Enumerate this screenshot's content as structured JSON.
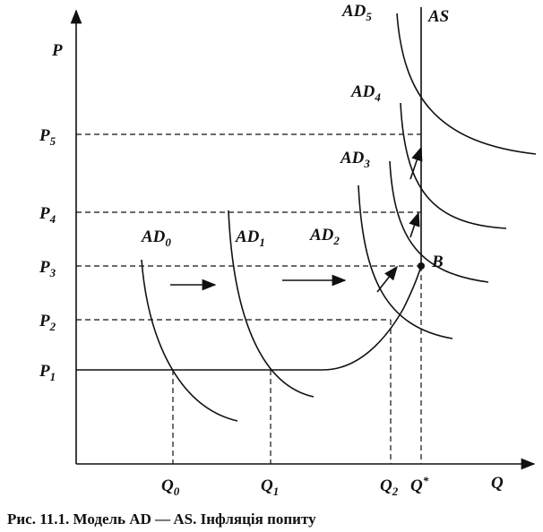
{
  "axes": {
    "y_label": "P",
    "x_label": "Q"
  },
  "price_levels": [
    {
      "main": "P",
      "sub": "5"
    },
    {
      "main": "P",
      "sub": "4"
    },
    {
      "main": "P",
      "sub": "3"
    },
    {
      "main": "P",
      "sub": "2"
    },
    {
      "main": "P",
      "sub": "1"
    }
  ],
  "quantities": [
    {
      "main": "Q",
      "sub": "0"
    },
    {
      "main": "Q",
      "sub": "1"
    },
    {
      "main": "Q",
      "sub": "2"
    },
    {
      "main": "Q",
      "sup": "*"
    }
  ],
  "curves": [
    {
      "main": "AD",
      "sub": "0"
    },
    {
      "main": "AD",
      "sub": "1"
    },
    {
      "main": "AD",
      "sub": "2"
    },
    {
      "main": "AD",
      "sub": "3"
    },
    {
      "main": "AD",
      "sub": "4"
    },
    {
      "main": "AD",
      "sub": "5"
    },
    {
      "main": "AS"
    }
  ],
  "point": "B",
  "caption": "Рис. 11.1. Модель AD — AS. Інфляція попиту"
}
